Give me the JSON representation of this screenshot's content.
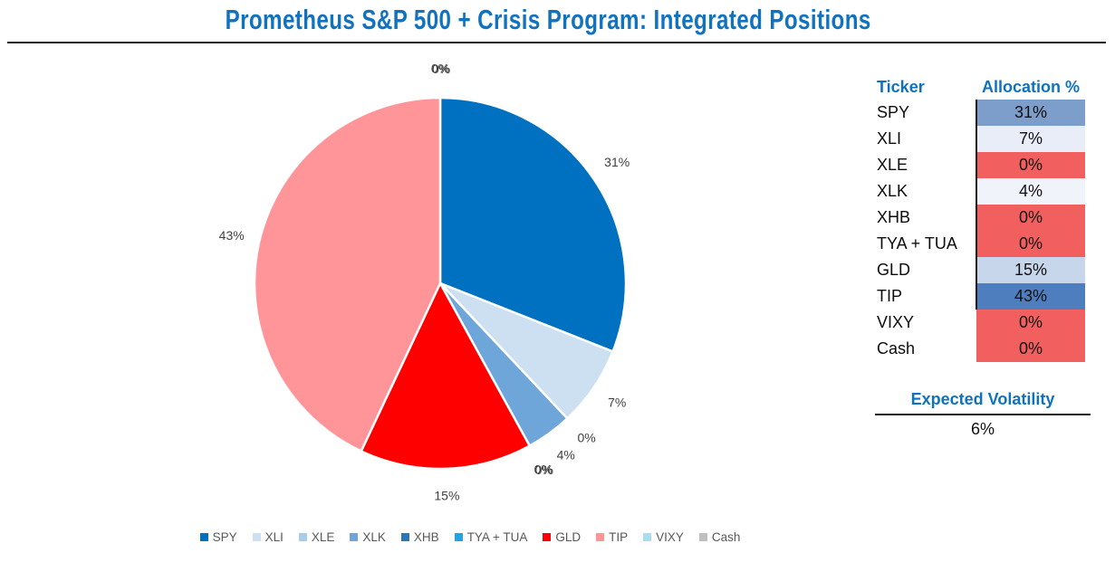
{
  "title": "Prometheus S&P 500 + Crisis Program: Integrated Positions",
  "chart_data": {
    "type": "pie",
    "title": "Prometheus S&P 500 + Crisis Program: Integrated Positions",
    "legend_position": "bottom",
    "start_angle_deg": 0,
    "direction": "clockwise",
    "categories": [
      "SPY",
      "XLI",
      "XLE",
      "XLK",
      "XHB",
      "TYA + TUA",
      "GLD",
      "TIP",
      "VIXY",
      "Cash"
    ],
    "values": [
      31,
      7,
      0,
      4,
      0,
      0,
      15,
      43,
      0,
      0
    ],
    "labels": [
      "31%",
      "7%",
      "0%",
      "4%",
      "0%",
      "0%",
      "15%",
      "43%",
      "0%",
      "0%"
    ],
    "colors": [
      "#0070C0",
      "#CDE0F2",
      "#A9CDE9",
      "#6FA6D9",
      "#2E75B6",
      "#25A5E0",
      "#FF0000",
      "#FF9599",
      "#AADCF2",
      "#BFBFBF"
    ]
  },
  "table": {
    "headers": [
      "Ticker",
      "Allocation %"
    ],
    "rows": [
      {
        "ticker": "SPY",
        "allocation": "31%",
        "cell_color": "#7D9DCA"
      },
      {
        "ticker": "XLI",
        "allocation": "7%",
        "cell_color": "#E9EDF7"
      },
      {
        "ticker": "XLE",
        "allocation": "0%",
        "cell_color": "#F25F5F"
      },
      {
        "ticker": "XLK",
        "allocation": "4%",
        "cell_color": "#F1F3FA"
      },
      {
        "ticker": "XHB",
        "allocation": "0%",
        "cell_color": "#F25F5F"
      },
      {
        "ticker": "TYA + TUA",
        "allocation": "0%",
        "cell_color": "#F25F5F"
      },
      {
        "ticker": "GLD",
        "allocation": "15%",
        "cell_color": "#C8D6EC"
      },
      {
        "ticker": "TIP",
        "allocation": "43%",
        "cell_color": "#4E7EBD"
      },
      {
        "ticker": "VIXY",
        "allocation": "0%",
        "cell_color": "#F25F5F"
      },
      {
        "ticker": "Cash",
        "allocation": "0%",
        "cell_color": "#F25F5F"
      }
    ]
  },
  "volatility": {
    "label": "Expected Volatility",
    "value": "6%"
  },
  "colors": {
    "accent_blue": "#0E72BE",
    "title_blue": "#1172BF",
    "label_gray": "#3f3f3f",
    "legend_gray": "#595959"
  }
}
